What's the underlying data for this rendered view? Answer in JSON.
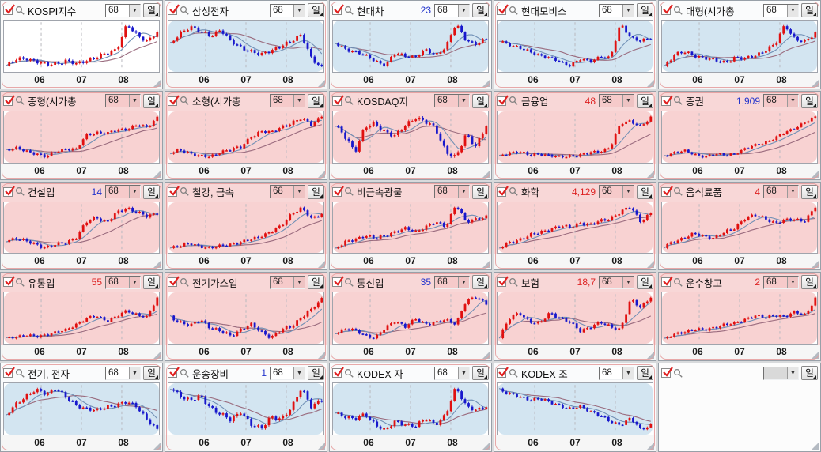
{
  "ui": {
    "period_value": "68",
    "unit_label": "일",
    "x_ticks": [
      "06",
      "07",
      "08"
    ],
    "tick_pos": [
      0.24,
      0.5,
      0.76
    ],
    "icons": {
      "chevron_down": "▼",
      "checkbox_check": "check-red",
      "magnifier": "search"
    },
    "colors": {
      "up": "#e01010",
      "down": "#1818cc",
      "ma_short": "#6f8fb5",
      "ma_long": "#9a6b7e",
      "grid": "#b9b9bf",
      "value_red": "#dd2222",
      "value_blue": "#2233cc",
      "pink_bg": "#f8d2d2",
      "blue_bg": "#d3e5f1"
    }
  },
  "chart_data": {
    "type": "candlestick-grid",
    "note": "each panel trend is normalized price path 0-100 across 06-08 period",
    "x_ticks": [
      "06",
      "07",
      "08"
    ]
  },
  "panels": [
    {
      "label": "KOSPI지수",
      "value": "",
      "value_color": "",
      "theme": "white",
      "trend": [
        32,
        40,
        43,
        38,
        33,
        36,
        39,
        34,
        40,
        44,
        48,
        55,
        88,
        72,
        66,
        78
      ]
    },
    {
      "label": "삼성전자",
      "value": "",
      "value_color": "",
      "theme": "blue",
      "trend": [
        52,
        68,
        78,
        70,
        64,
        74,
        56,
        48,
        44,
        38,
        44,
        52,
        56,
        66,
        34,
        20
      ]
    },
    {
      "label": "현대차",
      "value": "23",
      "value_color": "blue",
      "theme": "blue",
      "trend": [
        56,
        48,
        42,
        36,
        28,
        20,
        40,
        36,
        34,
        45,
        38,
        50,
        88,
        62,
        55,
        63
      ]
    },
    {
      "label": "현대모비스",
      "value": "",
      "value_color": "",
      "theme": "blue",
      "trend": [
        62,
        55,
        48,
        42,
        36,
        30,
        24,
        18,
        28,
        24,
        34,
        30,
        92,
        68,
        60,
        66
      ]
    },
    {
      "label": "대형(시가총",
      "value": "",
      "value_color": "",
      "theme": "blue",
      "trend": [
        26,
        42,
        46,
        42,
        38,
        34,
        32,
        38,
        36,
        42,
        48,
        56,
        86,
        64,
        60,
        74
      ]
    },
    {
      "label": "중형(시가총",
      "value": "",
      "value_color": "",
      "theme": "pink",
      "trend": [
        30,
        32,
        27,
        24,
        17,
        27,
        32,
        30,
        55,
        60,
        57,
        64,
        66,
        72,
        68,
        86
      ]
    },
    {
      "label": "소형(시가총",
      "value": "",
      "value_color": "",
      "theme": "pink",
      "trend": [
        22,
        25,
        21,
        17,
        14,
        24,
        28,
        30,
        48,
        57,
        54,
        64,
        70,
        77,
        68,
        82
      ]
    },
    {
      "label": "KOSDAQ지",
      "value": "",
      "value_color": "",
      "theme": "pink",
      "trend": [
        56,
        44,
        28,
        54,
        58,
        50,
        44,
        56,
        66,
        60,
        52,
        28,
        20,
        46,
        34,
        56
      ]
    },
    {
      "label": "금융업",
      "value": "48",
      "value_color": "red",
      "theme": "pink",
      "trend": [
        18,
        26,
        28,
        20,
        24,
        21,
        17,
        20,
        22,
        25,
        28,
        36,
        76,
        82,
        72,
        86
      ]
    },
    {
      "label": "증권",
      "value": "1,909",
      "value_color": "blue",
      "theme": "pink",
      "trend": [
        14,
        22,
        25,
        17,
        14,
        18,
        16,
        20,
        28,
        36,
        42,
        50,
        62,
        72,
        82,
        93
      ]
    },
    {
      "label": "건설업",
      "value": "14",
      "value_color": "blue",
      "theme": "pink",
      "trend": [
        25,
        28,
        23,
        19,
        14,
        18,
        22,
        30,
        52,
        60,
        52,
        66,
        74,
        68,
        60,
        66
      ]
    },
    {
      "label": "철강, 금속",
      "value": "",
      "value_color": "",
      "theme": "pink",
      "trend": [
        20,
        22,
        26,
        22,
        18,
        22,
        26,
        28,
        33,
        40,
        46,
        56,
        78,
        86,
        68,
        78
      ]
    },
    {
      "label": "비금속광물",
      "value": "",
      "value_color": "",
      "theme": "pink",
      "trend": [
        14,
        24,
        30,
        36,
        30,
        36,
        42,
        46,
        42,
        50,
        56,
        50,
        86,
        56,
        62,
        66
      ]
    },
    {
      "label": "화학",
      "value": "4,129",
      "value_color": "red",
      "theme": "pink",
      "trend": [
        16,
        24,
        30,
        36,
        40,
        46,
        50,
        48,
        56,
        52,
        58,
        63,
        72,
        80,
        58,
        70
      ]
    },
    {
      "label": "음식료품",
      "value": "4",
      "value_color": "red",
      "theme": "pink",
      "trend": [
        14,
        24,
        30,
        36,
        32,
        30,
        38,
        46,
        62,
        66,
        62,
        54,
        58,
        60,
        58,
        80
      ]
    },
    {
      "label": "유통업",
      "value": "55",
      "value_color": "red",
      "theme": "pink",
      "trend": [
        14,
        18,
        20,
        17,
        22,
        26,
        30,
        42,
        52,
        56,
        48,
        56,
        66,
        60,
        54,
        90
      ]
    },
    {
      "label": "전기가스업",
      "value": "",
      "value_color": "",
      "theme": "pink",
      "trend": [
        56,
        48,
        42,
        52,
        40,
        34,
        28,
        38,
        44,
        34,
        26,
        36,
        42,
        56,
        66,
        82
      ]
    },
    {
      "label": "통신업",
      "value": "35",
      "value_color": "blue",
      "theme": "pink",
      "trend": [
        24,
        30,
        28,
        20,
        14,
        32,
        46,
        34,
        48,
        40,
        42,
        46,
        40,
        80,
        86,
        76
      ]
    },
    {
      "label": "보험",
      "value": "18,7",
      "value_color": "red",
      "theme": "pink",
      "trend": [
        18,
        46,
        56,
        42,
        38,
        56,
        48,
        40,
        27,
        34,
        40,
        34,
        30,
        76,
        64,
        82
      ]
    },
    {
      "label": "운수창고",
      "value": "2",
      "value_color": "red",
      "theme": "pink",
      "trend": [
        14,
        22,
        28,
        32,
        30,
        36,
        40,
        42,
        50,
        56,
        52,
        58,
        54,
        62,
        58,
        86
      ]
    },
    {
      "label": "전기, 전자",
      "value": "",
      "value_color": "",
      "theme": "blue",
      "trend": [
        38,
        56,
        68,
        76,
        70,
        80,
        64,
        54,
        50,
        46,
        52,
        56,
        58,
        52,
        34,
        18
      ]
    },
    {
      "label": "운송장비",
      "value": "1",
      "value_color": "blue",
      "theme": "blue",
      "trend": [
        66,
        58,
        52,
        56,
        44,
        36,
        28,
        40,
        24,
        18,
        34,
        30,
        42,
        68,
        44,
        52
      ]
    },
    {
      "label": "KODEX 자",
      "value": "",
      "value_color": "",
      "theme": "blue",
      "trend": [
        50,
        45,
        40,
        48,
        34,
        24,
        38,
        34,
        30,
        42,
        34,
        46,
        86,
        60,
        52,
        58
      ]
    },
    {
      "label": "KODEX 조",
      "value": "",
      "value_color": "",
      "theme": "blue",
      "trend": [
        86,
        78,
        72,
        68,
        70,
        62,
        58,
        52,
        55,
        48,
        40,
        28,
        24,
        36,
        14,
        24
      ]
    },
    {
      "label": "",
      "value": "",
      "value_color": "",
      "theme": "white",
      "empty": true
    }
  ]
}
